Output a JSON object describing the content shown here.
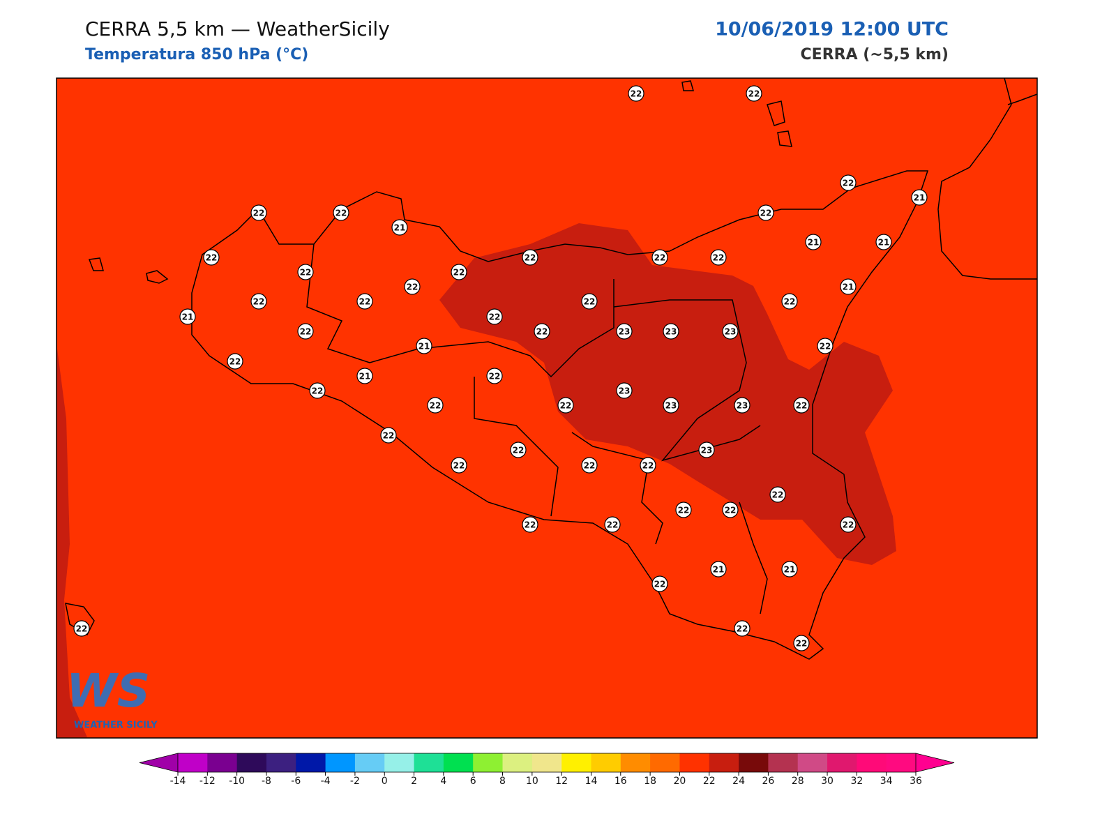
{
  "header": {
    "title": "CERRA 5,5 km — WeatherSicily",
    "subtitle": "Temperatura 850 hPa (°C)",
    "datetime": "10/06/2019 12:00 UTC",
    "model": "CERRA (~5,5 km)"
  },
  "logo": {
    "mark": "WS",
    "text": "WEATHER SICILY"
  },
  "stations": [
    22,
    22,
    22,
    21,
    22,
    22,
    21,
    22,
    22,
    22,
    22,
    22,
    21,
    21,
    22,
    22,
    22,
    21,
    21,
    22,
    22,
    22,
    22,
    22,
    22,
    22,
    23,
    23,
    23,
    21,
    22,
    22,
    21,
    22,
    22,
    23,
    22,
    22,
    23,
    23,
    22,
    22,
    22,
    23,
    22,
    22,
    22,
    22,
    22,
    22,
    22,
    22,
    22,
    21,
    21,
    22,
    22,
    22,
    22
  ],
  "colorbar": {
    "ticks": [
      -14,
      -12,
      -10,
      -8,
      -6,
      -4,
      -2,
      0,
      2,
      4,
      6,
      8,
      10,
      12,
      14,
      16,
      18,
      20,
      22,
      24,
      26,
      28,
      30,
      32,
      34,
      36
    ],
    "colors": [
      "#c000c8",
      "#7a0090",
      "#2e0a5a",
      "#3c2080",
      "#0018a8",
      "#0096ff",
      "#66ccf5",
      "#96f0e8",
      "#1ee096",
      "#00e050",
      "#8ef032",
      "#dcf080",
      "#f0e68c",
      "#fff000",
      "#ffcc00",
      "#ff8c00",
      "#ff6a00",
      "#ff3200",
      "#c81e0f",
      "#780a0a",
      "#b43250",
      "#d04a86",
      "#e0186e",
      "#ff0a78",
      "#ff0a80"
    ],
    "under_color": "#a000a8",
    "over_color": "#ff0090"
  }
}
